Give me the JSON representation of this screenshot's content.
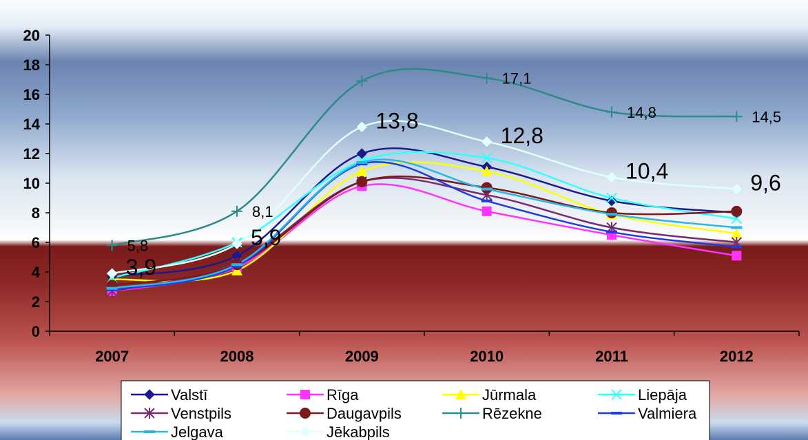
{
  "chart_data": {
    "type": "line",
    "title": "",
    "xlabel": "",
    "ylabel": "",
    "categories": [
      "2007",
      "2008",
      "2009",
      "2010",
      "2011",
      "2012"
    ],
    "ylim": [
      0,
      20
    ],
    "yticks": [
      "0",
      "2",
      "4",
      "6",
      "8",
      "10",
      "12",
      "14",
      "16",
      "18",
      "20"
    ],
    "grid": false,
    "legend_position": "bottom",
    "series": [
      {
        "name": "Valstī",
        "color": "#1a1a8c",
        "marker": "diamond",
        "values": [
          3.7,
          5.1,
          12.0,
          11.1,
          8.8,
          8.0
        ]
      },
      {
        "name": "Rīga",
        "color": "#ff33ff",
        "marker": "square",
        "values": [
          2.7,
          4.3,
          9.8,
          8.1,
          6.5,
          5.1
        ]
      },
      {
        "name": "Jūrmala",
        "color": "#ffff00",
        "marker": "triangle",
        "values": [
          3.5,
          4.1,
          10.8,
          10.8,
          7.9,
          6.6
        ]
      },
      {
        "name": "Liepāja",
        "color": "#33ffff",
        "marker": "x",
        "values": [
          3.6,
          6.0,
          11.5,
          11.7,
          9.0,
          7.6
        ]
      },
      {
        "name": "Venstpils",
        "color": "#7a2b6e",
        "marker": "star",
        "values": [
          2.7,
          4.6,
          10.1,
          9.2,
          7.0,
          6.0
        ]
      },
      {
        "name": "Daugavpils",
        "color": "#7a1a1a",
        "marker": "circle",
        "values": [
          3.1,
          4.5,
          10.1,
          9.7,
          8.0,
          8.1
        ]
      },
      {
        "name": "Rēzekne",
        "color": "#2e8a8a",
        "marker": "plus",
        "values": [
          5.8,
          8.1,
          16.9,
          17.1,
          14.8,
          14.5
        ]
      },
      {
        "name": "Valmiera",
        "color": "#1f3ddb",
        "marker": "dash",
        "values": [
          2.8,
          4.4,
          11.3,
          8.8,
          6.7,
          5.7
        ]
      },
      {
        "name": "Jelgava",
        "color": "#29b6e8",
        "marker": "dash",
        "values": [
          2.9,
          4.5,
          11.4,
          9.6,
          7.9,
          7.0
        ]
      },
      {
        "name": "Jēkabpils",
        "color": "#e0ffff",
        "marker": "diamond",
        "values": [
          3.9,
          5.9,
          13.8,
          12.8,
          10.4,
          9.6
        ]
      }
    ],
    "annotations": [
      {
        "text": "5,8",
        "series": "Rēzekne",
        "index": 0,
        "size": "small"
      },
      {
        "text": "8,1",
        "series": "Rēzekne",
        "index": 1,
        "size": "small"
      },
      {
        "text": "17,1",
        "series": "Rēzekne",
        "index": 3,
        "size": "small"
      },
      {
        "text": "14,8",
        "series": "Rēzekne",
        "index": 4,
        "size": "small"
      },
      {
        "text": "14,5",
        "series": "Rēzekne",
        "index": 5,
        "size": "small"
      },
      {
        "text": "3,9",
        "series": "Jēkabpils",
        "index": 0,
        "size": "large"
      },
      {
        "text": "5,9",
        "series": "Jēkabpils",
        "index": 1,
        "size": "large"
      },
      {
        "text": "13,8",
        "series": "Jēkabpils",
        "index": 2,
        "size": "large"
      },
      {
        "text": "12,8",
        "series": "Jēkabpils",
        "index": 3,
        "size": "large"
      },
      {
        "text": "10,4",
        "series": "Jēkabpils",
        "index": 4,
        "size": "large"
      },
      {
        "text": "9,6",
        "series": "Jēkabpils",
        "index": 5,
        "size": "large"
      }
    ]
  }
}
